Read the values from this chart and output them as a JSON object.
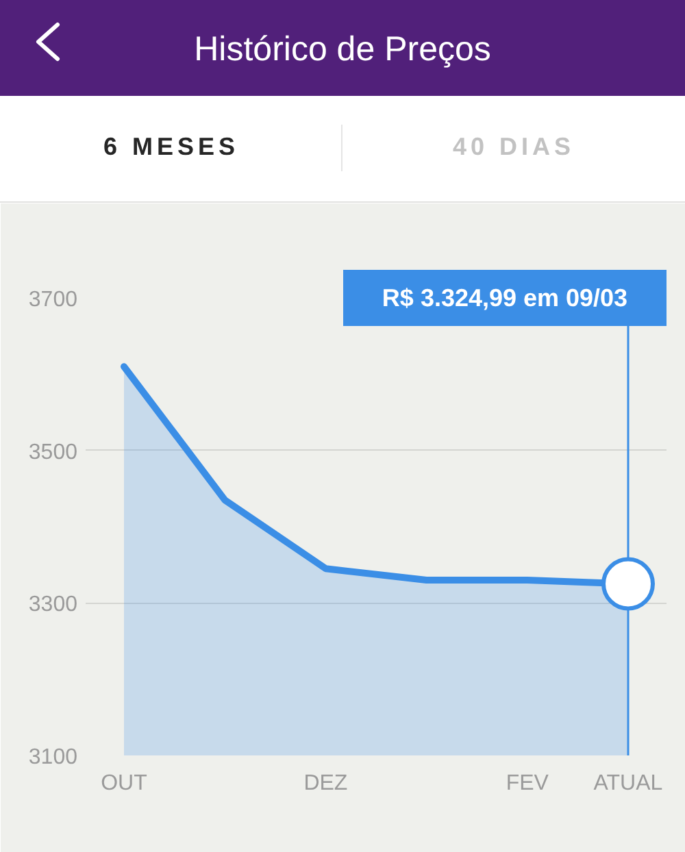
{
  "chart_data": {
    "type": "area",
    "title": "Histórico de Preços",
    "categories": [
      "OUT",
      null,
      "DEZ",
      null,
      "FEV",
      "ATUAL"
    ],
    "values": [
      3610,
      3435,
      3345,
      3330,
      3330,
      3324.99
    ],
    "color": "#3b8ee6",
    "ylim": [
      3100,
      3700
    ],
    "yticks": [
      3100,
      3300,
      3500,
      3700
    ],
    "grid": "y",
    "ref_lines": [
      {
        "axis": "x",
        "value": "ATUAL",
        "color": "#3b8ee6"
      }
    ],
    "annotations": [
      "6 MESES",
      "40 DIAS",
      "R$ 3.324,99 em 09/03"
    ]
  }
}
